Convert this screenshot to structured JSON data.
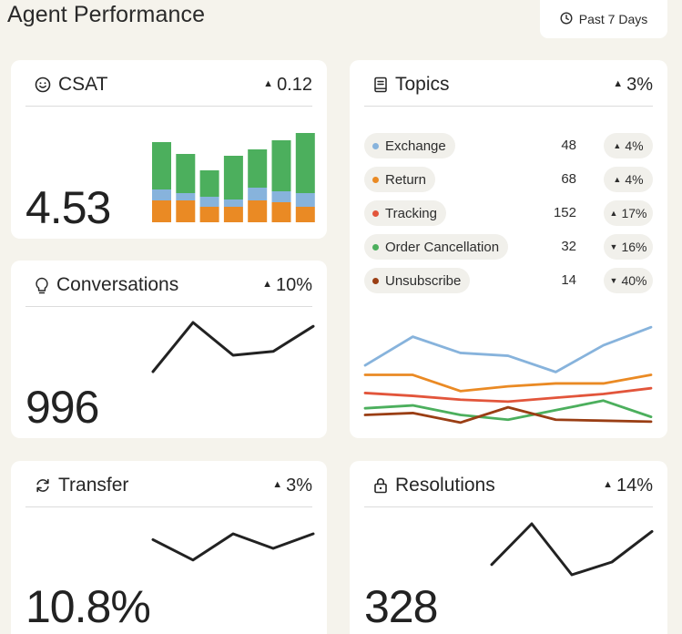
{
  "header": {
    "title": "Agent Performance",
    "range_label": "Past 7 Days"
  },
  "colors": {
    "green": "#4caf5d",
    "blue": "#87b3dc",
    "orange": "#ea8a24",
    "red": "#e2553b",
    "brown": "#9a3e14",
    "line": "#222222"
  },
  "csat": {
    "title": "CSAT",
    "delta_dir": "▲",
    "delta": "0.12",
    "value": "4.53",
    "bars": [
      {
        "orange": 24,
        "blue": 12,
        "green": 52
      },
      {
        "orange": 24,
        "blue": 8,
        "green": 43
      },
      {
        "orange": 17,
        "blue": 11,
        "green": 29
      },
      {
        "orange": 17,
        "blue": 8,
        "green": 48
      },
      {
        "orange": 24,
        "blue": 14,
        "green": 42
      },
      {
        "orange": 22,
        "blue": 12,
        "green": 56
      },
      {
        "orange": 17,
        "blue": 15,
        "green": 66
      }
    ]
  },
  "conversations": {
    "title": "Conversations",
    "delta_dir": "▲",
    "delta": "10%",
    "value": "996",
    "trend": [
      10,
      100,
      40,
      47,
      93
    ]
  },
  "transfer": {
    "title": "Transfer",
    "delta_dir": "▲",
    "delta": "3%",
    "value": "10.8%",
    "trend": [
      80,
      10,
      100,
      50,
      100
    ]
  },
  "resolutions": {
    "title": "Resolutions",
    "delta_dir": "▲",
    "delta": "14%",
    "value": "328",
    "trend": [
      20,
      100,
      0,
      25,
      85
    ]
  },
  "topics": {
    "title": "Topics",
    "delta_dir": "▲",
    "delta": "3%",
    "items": [
      {
        "name": "Exchange",
        "count": "48",
        "dir": "▲",
        "change": "4%",
        "color": "#87b3dc"
      },
      {
        "name": "Return",
        "count": "68",
        "dir": "▲",
        "change": "4%",
        "color": "#ea8a24"
      },
      {
        "name": "Tracking",
        "count": "152",
        "dir": "▲",
        "change": "17%",
        "color": "#e2553b"
      },
      {
        "name": "Order Cancellation",
        "count": "32",
        "dir": "▼",
        "change": "16%",
        "color": "#4caf5d"
      },
      {
        "name": "Unsubscribe",
        "count": "14",
        "dir": "▼",
        "change": "40%",
        "color": "#9a3e14"
      }
    ],
    "series": [
      {
        "name": "Exchange",
        "color": "#87b3dc",
        "values": [
          62,
          92,
          75,
          72,
          55,
          83,
          102
        ]
      },
      {
        "name": "Return",
        "color": "#ea8a24",
        "values": [
          52,
          52,
          35,
          40,
          43,
          43,
          52
        ]
      },
      {
        "name": "Tracking",
        "color": "#e2553b",
        "values": [
          33,
          30,
          26,
          24,
          28,
          32,
          38
        ]
      },
      {
        "name": "Order Cancellation",
        "color": "#4caf5d",
        "values": [
          17,
          20,
          10,
          5,
          15,
          25,
          8
        ]
      },
      {
        "name": "Unsubscribe",
        "color": "#9a3e14",
        "values": [
          10,
          12,
          2,
          18,
          5,
          4,
          3
        ]
      }
    ]
  }
}
